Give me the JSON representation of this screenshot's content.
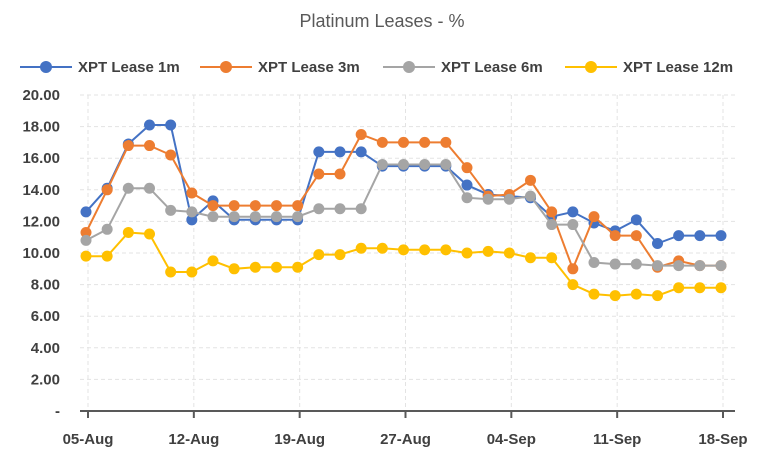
{
  "chart_data": {
    "type": "line",
    "title": "Platinum Leases - %",
    "ylim": [
      0,
      20
    ],
    "y_ticks": [
      "-",
      "2.00",
      "4.00",
      "6.00",
      "8.00",
      "10.00",
      "12.00",
      "14.00",
      "16.00",
      "18.00",
      "20.00"
    ],
    "x_ticks": [
      "05-Aug",
      "12-Aug",
      "19-Aug",
      "27-Aug",
      "04-Sep",
      "11-Sep",
      "18-Sep"
    ],
    "x_tick_index": [
      0,
      5,
      10,
      15,
      20,
      25,
      30
    ],
    "grid": true,
    "legend_position": "top",
    "series": [
      {
        "name": "XPT Lease 1m",
        "color": "#4472C4",
        "values": [
          12.6,
          14.1,
          16.9,
          18.1,
          18.1,
          12.1,
          13.3,
          12.1,
          12.1,
          12.1,
          12.1,
          16.4,
          16.4,
          16.4,
          15.5,
          15.5,
          15.5,
          15.5,
          14.3,
          13.7,
          13.6,
          13.5,
          12.3,
          12.6,
          11.9,
          11.4,
          12.1,
          10.6,
          11.1,
          11.1,
          11.1
        ]
      },
      {
        "name": "XPT Lease 3m",
        "color": "#ED7D31",
        "values": [
          11.3,
          14.0,
          16.8,
          16.8,
          16.2,
          13.8,
          13.0,
          13.0,
          13.0,
          13.0,
          13.0,
          15.0,
          15.0,
          17.5,
          17.0,
          17.0,
          17.0,
          17.0,
          15.4,
          13.6,
          13.7,
          14.6,
          12.6,
          9.0,
          12.3,
          11.1,
          11.1,
          9.1,
          9.5,
          9.2,
          9.2
        ]
      },
      {
        "name": "XPT Lease 6m",
        "color": "#A5A5A5",
        "values": [
          10.8,
          11.5,
          14.1,
          14.1,
          12.7,
          12.6,
          12.3,
          12.3,
          12.3,
          12.3,
          12.3,
          12.8,
          12.8,
          12.8,
          15.6,
          15.6,
          15.6,
          15.6,
          13.5,
          13.4,
          13.4,
          13.6,
          11.8,
          11.8,
          9.4,
          9.3,
          9.3,
          9.2,
          9.2,
          9.2,
          9.2
        ]
      },
      {
        "name": "XPT Lease 12m",
        "color": "#FFC000",
        "values": [
          9.8,
          9.8,
          11.3,
          11.2,
          8.8,
          8.8,
          9.5,
          9.0,
          9.1,
          9.1,
          9.1,
          9.9,
          9.9,
          10.3,
          10.3,
          10.2,
          10.2,
          10.2,
          10.0,
          10.1,
          10.0,
          9.7,
          9.7,
          8.0,
          7.4,
          7.3,
          7.4,
          7.3,
          7.8,
          7.8,
          7.8
        ]
      }
    ]
  }
}
